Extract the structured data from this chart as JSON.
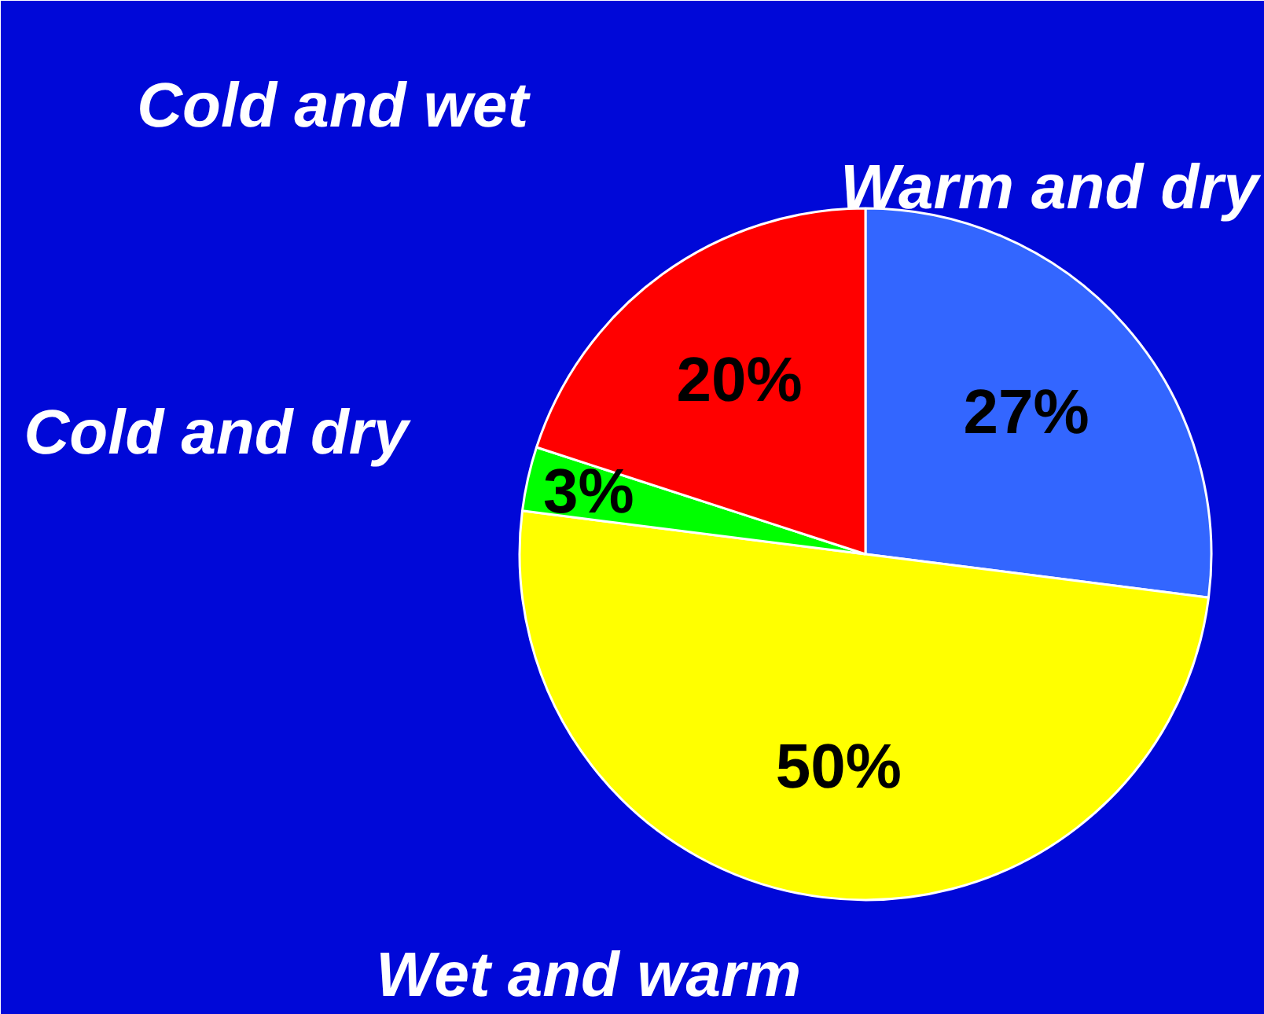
{
  "chart_data": {
    "type": "pie",
    "categories": [
      "Warm and dry",
      "Wet and warm",
      "Cold and dry",
      "Cold and wet"
    ],
    "values": [
      27,
      50,
      3,
      20
    ],
    "colors": [
      "#3366ff",
      "#ffff00",
      "#00ff00",
      "#ff0000"
    ],
    "value_labels": [
      "27%",
      "50%",
      "3%",
      "20%"
    ]
  }
}
